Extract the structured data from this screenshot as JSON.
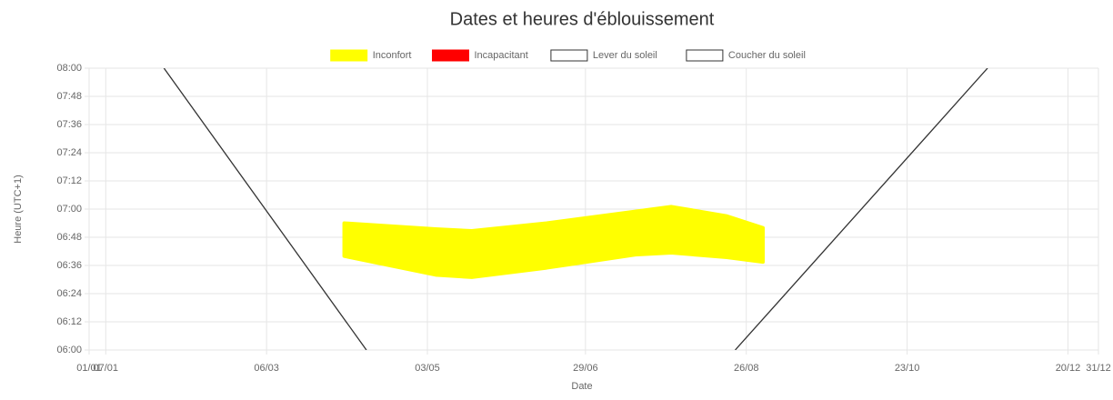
{
  "chart_data": {
    "type": "line",
    "title": "Dates et heures d'éblouissement",
    "xlabel": "Date",
    "ylabel": "Heure (UTC+1)",
    "xlim": [
      1,
      365
    ],
    "xticks": [
      {
        "value": 1,
        "label": "01/01"
      },
      {
        "value": 7,
        "label": "07/01"
      },
      {
        "value": 65,
        "label": "06/03"
      },
      {
        "value": 123,
        "label": "03/05"
      },
      {
        "value": 180,
        "label": "29/06"
      },
      {
        "value": 238,
        "label": "26/08"
      },
      {
        "value": 296,
        "label": "23/10"
      },
      {
        "value": 354,
        "label": "20/12"
      },
      {
        "value": 365,
        "label": "31/12"
      }
    ],
    "ylim": [
      360,
      480
    ],
    "yticks": [
      {
        "value": 360,
        "label": "06:00"
      },
      {
        "value": 372,
        "label": "06:12"
      },
      {
        "value": 384,
        "label": "06:24"
      },
      {
        "value": 396,
        "label": "06:36"
      },
      {
        "value": 408,
        "label": "06:48"
      },
      {
        "value": 420,
        "label": "07:00"
      },
      {
        "value": 432,
        "label": "07:12"
      },
      {
        "value": 444,
        "label": "07:24"
      },
      {
        "value": 456,
        "label": "07:36"
      },
      {
        "value": 468,
        "label": "07:48"
      },
      {
        "value": 480,
        "label": "08:00"
      }
    ],
    "grid": true,
    "legend": "top",
    "series": [
      {
        "name": "Inconfort",
        "color": "#ffff00",
        "kind": "band",
        "x": [
          93,
          126,
          139,
          166,
          198,
          211,
          231,
          244
        ],
        "high": [
          414,
          411.5,
          410.7,
          414,
          419,
          421,
          417,
          412
        ],
        "low": [
          400,
          392,
          391,
          395,
          400.6,
          401.4,
          399.5,
          397.5
        ]
      },
      {
        "name": "Incapacitant",
        "color": "#ff0000",
        "kind": "band",
        "x": [],
        "high": [],
        "low": []
      },
      {
        "name": "Lever du soleil",
        "color": "#333333",
        "kind": "line",
        "x": [
          28,
          101,
          168,
          234,
          325
        ],
        "values": [
          480,
          360,
          null,
          360,
          480
        ]
      },
      {
        "name": "Coucher du soleil",
        "color": "#333333",
        "kind": "line",
        "x": [],
        "values": []
      }
    ]
  }
}
